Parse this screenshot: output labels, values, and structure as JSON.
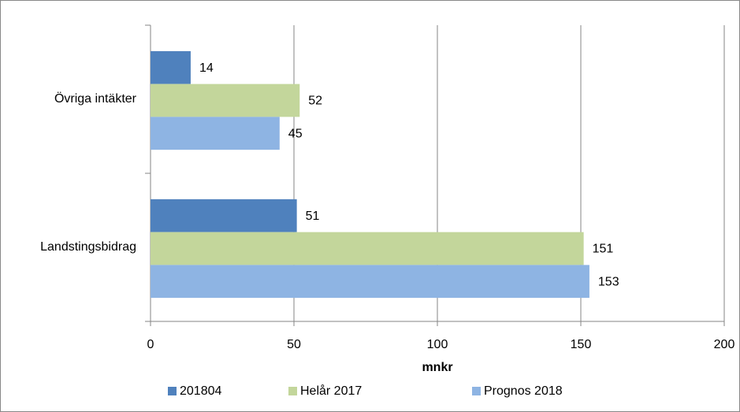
{
  "chart_data": {
    "type": "barh",
    "categories": [
      "Övriga intäkter",
      "Landstingsbidrag"
    ],
    "series": [
      {
        "name": "201804",
        "color": "#4f81bd",
        "values": [
          14,
          51
        ]
      },
      {
        "name": "Helår 2017",
        "color": "#c3d69b",
        "values": [
          52,
          151
        ]
      },
      {
        "name": "Prognos 2018",
        "color": "#8eb4e3",
        "values": [
          45,
          153
        ]
      }
    ],
    "xlabel": "mnkr",
    "xlim": [
      0,
      200
    ],
    "xticks": [
      0,
      50,
      100,
      150,
      200
    ],
    "grid": true,
    "legend": "bottom"
  }
}
